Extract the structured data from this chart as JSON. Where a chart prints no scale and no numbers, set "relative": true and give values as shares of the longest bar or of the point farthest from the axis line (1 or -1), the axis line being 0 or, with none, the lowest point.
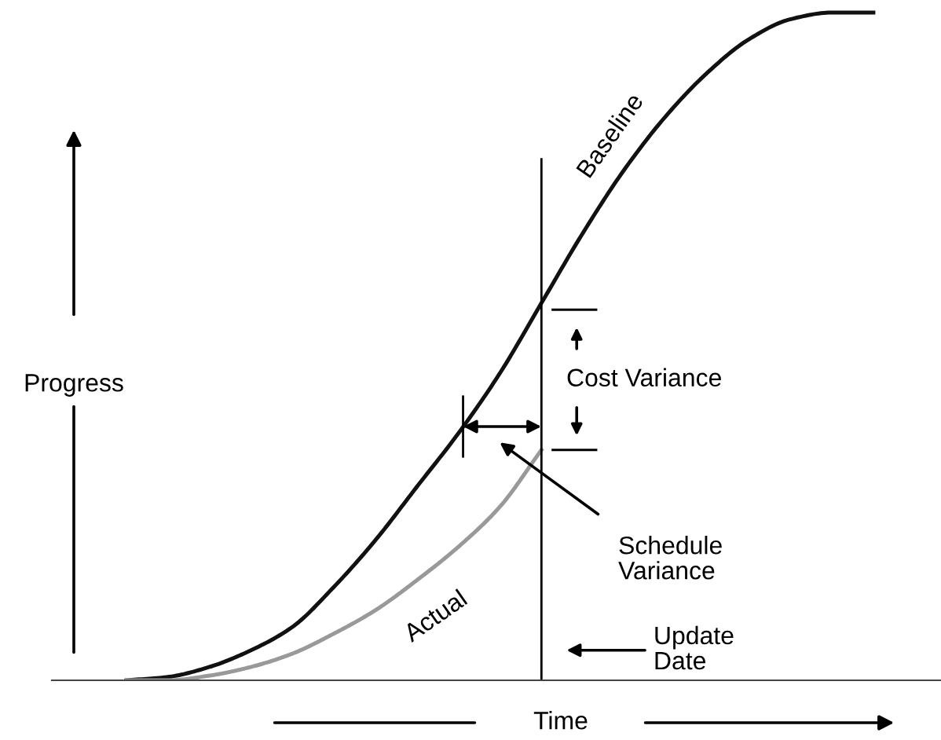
{
  "chart_data": {
    "type": "line",
    "relative": true,
    "xlabel": "Time",
    "ylabel": "Progress",
    "categories": [
      null,
      null,
      null,
      null,
      null,
      null,
      null,
      null,
      null,
      null,
      null,
      null,
      null,
      null,
      null,
      null,
      null,
      null,
      null
    ],
    "series": [
      {
        "name": "Baseline",
        "color": "#111111",
        "values": [
          0,
          0.005,
          0.02,
          0.045,
          0.08,
          0.14,
          0.21,
          0.29,
          0.37,
          0.46,
          0.565,
          0.67,
          0.765,
          0.845,
          0.91,
          0.96,
          0.99,
          1.0,
          1.0
        ]
      },
      {
        "name": "Actual",
        "color": "#999999",
        "values": [
          0,
          0,
          0.007,
          0.02,
          0.04,
          0.07,
          0.105,
          0.15,
          0.2,
          0.26,
          0.345,
          null,
          null,
          null,
          null,
          null,
          null,
          null,
          null
        ]
      }
    ],
    "annotations": [
      "Cost Variance",
      "Schedule Variance",
      "Update Date"
    ]
  }
}
